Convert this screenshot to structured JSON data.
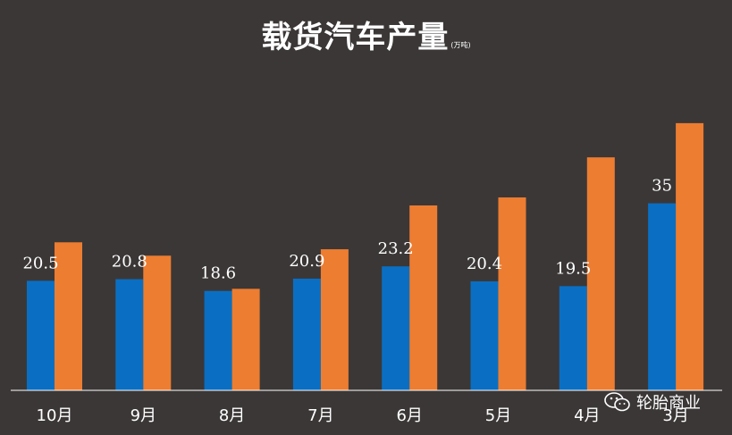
{
  "chart_data": {
    "type": "bar",
    "title": "载货汽车产量",
    "unit": "(万吨)",
    "categories": [
      "10月",
      "9月",
      "8月",
      "7月",
      "6月",
      "5月",
      "4月",
      "3月"
    ],
    "series": [
      {
        "values": [
          20.5,
          20.8,
          18.6,
          20.9,
          23.2,
          20.4,
          19.5,
          35
        ],
        "color": "#0a6fc2"
      },
      {
        "values": [
          27.7,
          25.2,
          19.0,
          26.4,
          34.6,
          36.1,
          43.6,
          50.0
        ],
        "color": "#ed7d31"
      }
    ],
    "data_labels_series_index": 0,
    "ylim": [
      0,
      58
    ],
    "grid": false
  },
  "watermark": {
    "text": "轮胎商业",
    "icon": "wechat-icon"
  }
}
